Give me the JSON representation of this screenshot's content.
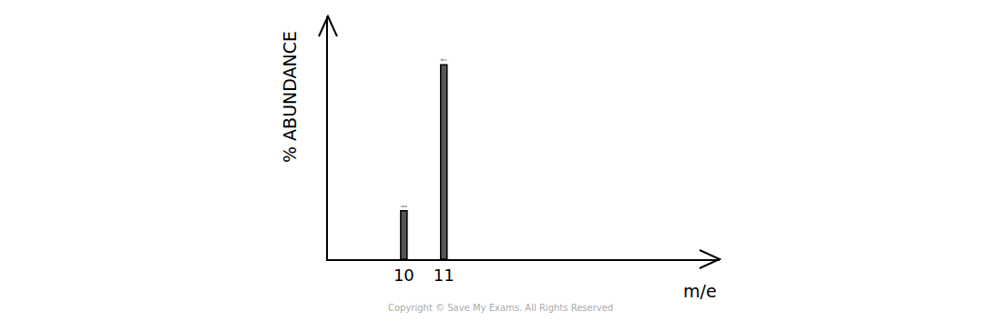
{
  "chart_data": {
    "type": "bar",
    "x_label": "m/e",
    "y_label": "% ABUNDANCE",
    "x": [
      10,
      11
    ],
    "values": [
      19.9,
      80.1
    ],
    "color": "#555555",
    "xlim": [
      8.1,
      17.9
    ],
    "xticks": [
      10,
      11
    ],
    "ylim": [
      0,
      100
    ],
    "tick_labels": "x",
    "data_labels": true,
    "grid": false,
    "annotations": [
      "Copyright © Save My Exams. All Rights Reserved"
    ]
  }
}
